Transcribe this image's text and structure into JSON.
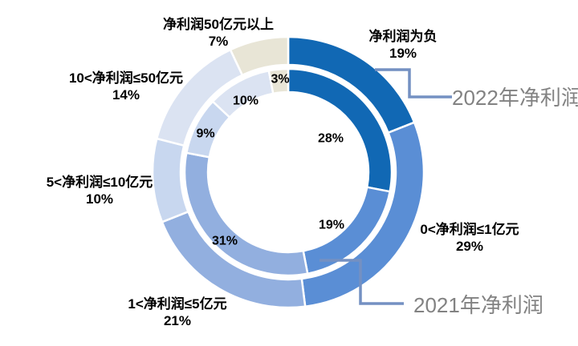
{
  "page": {
    "background": "#FFFFFF"
  },
  "chart_data": {
    "type": "donut",
    "rings": 2,
    "categories": [
      "净利润为负",
      "0<净利润≤1亿元",
      "1<净利润≤5亿元",
      "5<净利润≤10亿元",
      "10<净利润≤50亿元",
      "净利润50亿元以上"
    ],
    "series": [
      {
        "name": "2022年净利润",
        "ring": "outer",
        "values": [
          19,
          29,
          21,
          10,
          14,
          7
        ]
      },
      {
        "name": "2021年净利润",
        "ring": "inner",
        "values": [
          28,
          19,
          31,
          9,
          10,
          3
        ]
      }
    ],
    "unit": "%",
    "colors": [
      "#1168B4",
      "#5A8ED5",
      "#92AFDF",
      "#C8D7EF",
      "#DBE3F2",
      "#E8E5D6"
    ],
    "segment_border_color": "#FFFFFF",
    "callout_line_color": "#7490C2",
    "callout_text_color": "#828282",
    "label_text_color": "#000000",
    "legend_position": "callouts"
  }
}
